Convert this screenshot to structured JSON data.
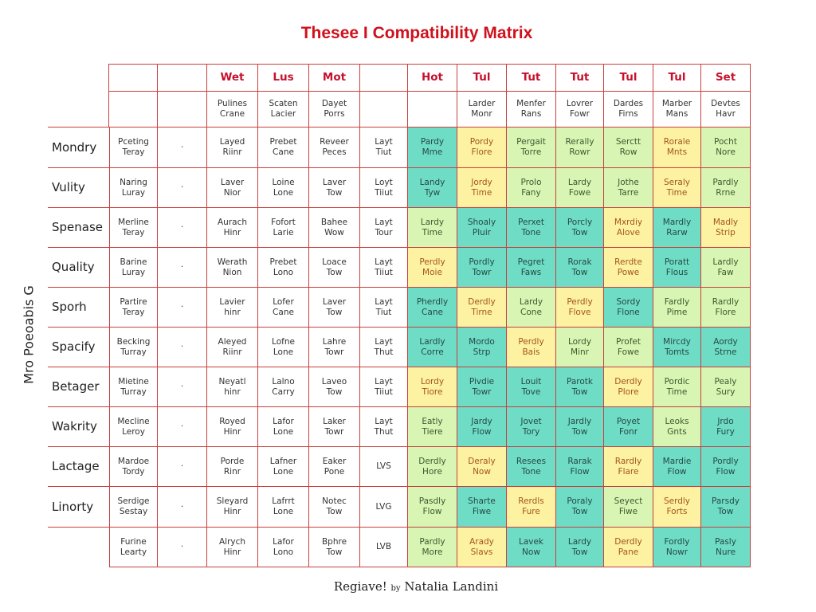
{
  "title": "Thesee I Compatibility Matrix",
  "vertical_label": "Mro Poeoabis G",
  "colors": {
    "border": "#c9403f",
    "header_text": "#c8102e",
    "T": "#6fdcc6",
    "Y": "#fcf2a2",
    "G": "#d8f5b3"
  },
  "header": [
    "",
    "",
    "Wet",
    "Lus",
    "Mot",
    "",
    "Hot",
    "Tul",
    "Tut",
    "Tut",
    "Tul",
    "Tul",
    "Set"
  ],
  "subheader": [
    "",
    "",
    "Pulines\nCrane",
    "Scaten\nLacier",
    "Dayet\nPorrs",
    "",
    "",
    "Larder\nMonr",
    "Menfer\nRans",
    "Lovrer\nFowr",
    "Dardes\nFirns",
    "Marber\nMans",
    "Devtes\nHavr"
  ],
  "rows": [
    {
      "label": "Mondry",
      "cells": [
        "Pceting\nTeray",
        "·",
        "Layed\nRiinr",
        "Prebet\nCane",
        "Reveer\nPeces",
        "Layt\nTiut"
      ],
      "ratings": [
        [
          "Pardy\nMme",
          "T"
        ],
        [
          "Pordy\nFlore",
          "Y"
        ],
        [
          "Pergait\nTorre",
          "G"
        ],
        [
          "Rerally\nRowr",
          "G"
        ],
        [
          "Serctt\nRow",
          "G"
        ],
        [
          "Rorale\nMnts",
          "Y"
        ],
        [
          "Pocht\nNore",
          "G"
        ]
      ]
    },
    {
      "label": "Vulity",
      "cells": [
        "Naring\nLuray",
        "·",
        "Laver\nNior",
        "Loine\nLone",
        "Laver\nTow",
        "Loyt\nTiiut"
      ],
      "ratings": [
        [
          "Landy\nTyw",
          "T"
        ],
        [
          "Jordy\nTime",
          "Y"
        ],
        [
          "Prolo\nFany",
          "G"
        ],
        [
          "Lardy\nFowe",
          "G"
        ],
        [
          "Jothe\nTarre",
          "G"
        ],
        [
          "Seraly\nTime",
          "Y"
        ],
        [
          "Pardly\nRrne",
          "G"
        ]
      ]
    },
    {
      "label": "Spenase",
      "cells": [
        "Merline\nTeray",
        "·",
        "Aurach\nHinr",
        "Fofort\nLarie",
        "Bahee\nWow",
        "Layt\nTour"
      ],
      "ratings": [
        [
          "Lardy\nTime",
          "G"
        ],
        [
          "Shoaly\nPluir",
          "T"
        ],
        [
          "Perxet\nTone",
          "T"
        ],
        [
          "Porcly\nTow",
          "T"
        ],
        [
          "Mxrdiy\nAlove",
          "Y"
        ],
        [
          "Mardly\nRarw",
          "T"
        ],
        [
          "Madly\nStrip",
          "Y"
        ]
      ]
    },
    {
      "label": "Quality",
      "cells": [
        "Barine\nLuray",
        "·",
        "Werath\nNion",
        "Prebet\nLono",
        "Loace\nTow",
        "Layt\nTiiut"
      ],
      "ratings": [
        [
          "Perdly\nMoie",
          "Y"
        ],
        [
          "Pordly\nTowr",
          "T"
        ],
        [
          "Pegret\nFaws",
          "T"
        ],
        [
          "Rorak\nTow",
          "T"
        ],
        [
          "Rerdte\nPowe",
          "Y"
        ],
        [
          "Poratt\nFlous",
          "T"
        ],
        [
          "Lardly\nFaw",
          "G"
        ]
      ]
    },
    {
      "label": "Sporh",
      "cells": [
        "Partire\nTeray",
        "·",
        "Lavier\nhinr",
        "Lofer\nCane",
        "Laver\nTow",
        "Layt\nTiut"
      ],
      "ratings": [
        [
          "Pherdly\nCane",
          "T"
        ],
        [
          "Derdly\nTirne",
          "Y"
        ],
        [
          "Lardy\nCone",
          "G"
        ],
        [
          "Perdly\nFlove",
          "Y"
        ],
        [
          "Sordy\nFlone",
          "T"
        ],
        [
          "Fardly\nPime",
          "G"
        ],
        [
          "Rardly\nFlore",
          "G"
        ]
      ]
    },
    {
      "label": "Spacify",
      "cells": [
        "Becking\nTurray",
        "·",
        "Aleyed\nRiinr",
        "Lofne\nLone",
        "Lahre\nTowr",
        "Layt\nThut"
      ],
      "ratings": [
        [
          "Lardly\nCorre",
          "T"
        ],
        [
          "Mordo\nStrp",
          "T"
        ],
        [
          "Perdly\nBais",
          "Y"
        ],
        [
          "Lordy\nMinr",
          "G"
        ],
        [
          "Profet\nFowe",
          "G"
        ],
        [
          "Mircdy\nTomts",
          "T"
        ],
        [
          "Aordy\nStrne",
          "T"
        ]
      ]
    },
    {
      "label": "Betager",
      "cells": [
        "Mietine\nTurray",
        "·",
        "Neyatl\nhinr",
        "Lalno\nCarry",
        "Laveo\nTow",
        "Layt\nTiiut"
      ],
      "ratings": [
        [
          "Lordy\nTiore",
          "Y"
        ],
        [
          "Pivdie\nTowr",
          "T"
        ],
        [
          "Louit\nTove",
          "T"
        ],
        [
          "Parotk\nTow",
          "T"
        ],
        [
          "Derdly\nPlore",
          "Y"
        ],
        [
          "Pordic\nTime",
          "G"
        ],
        [
          "Pealy\nSury",
          "G"
        ]
      ]
    },
    {
      "label": "Wakrity",
      "cells": [
        "Mecline\nLeroy",
        "·",
        "Royed\nHinr",
        "Lafor\nLone",
        "Laker\nTowr",
        "Layt\nThut"
      ],
      "ratings": [
        [
          "Eatly\nTiere",
          "G"
        ],
        [
          "Jardy\nFlow",
          "T"
        ],
        [
          "Jovet\nTory",
          "T"
        ],
        [
          "Jardly\nTow",
          "T"
        ],
        [
          "Poyet\nFonr",
          "T"
        ],
        [
          "Leoks\nGnts",
          "G"
        ],
        [
          "Jrdo\nFury",
          "T"
        ]
      ]
    },
    {
      "label": "Lactage",
      "cells": [
        "Mardoe\nTordy",
        "·",
        "Porde\nRinr",
        "Lafner\nLone",
        "Eaker\nPone",
        "LVS"
      ],
      "ratings": [
        [
          "Derdly\nHore",
          "G"
        ],
        [
          "Deraly\nNow",
          "Y"
        ],
        [
          "Resees\nTone",
          "T"
        ],
        [
          "Rarak\nFlow",
          "T"
        ],
        [
          "Rardly\nFlare",
          "Y"
        ],
        [
          "Mardie\nFlow",
          "T"
        ],
        [
          "Pordly\nFlow",
          "T"
        ]
      ]
    },
    {
      "label": "Linorty",
      "cells": [
        "Serdige\nSestay",
        "·",
        "Sleyard\nHinr",
        "Lafrrt\nLone",
        "Notec\nTow",
        "LVG"
      ],
      "ratings": [
        [
          "Pasdly\nFlow",
          "G"
        ],
        [
          "Sharte\nFiwe",
          "T"
        ],
        [
          "Rerdls\nFure",
          "Y"
        ],
        [
          "Poraly\nTow",
          "T"
        ],
        [
          "Seyect\nFiwe",
          "G"
        ],
        [
          "Serdly\nForts",
          "Y"
        ],
        [
          "Parsdy\nTow",
          "T"
        ]
      ]
    },
    {
      "label": "",
      "cells": [
        "Furine\nLearty",
        "·",
        "Alrych\nHinr",
        "Lafor\nLono",
        "Bphre\nTow",
        "LVB"
      ],
      "ratings": [
        [
          "Pardly\nMore",
          "G"
        ],
        [
          "Arady\nSlavs",
          "Y"
        ],
        [
          "Lavek\nNow",
          "T"
        ],
        [
          "Lardy\nTow",
          "T"
        ],
        [
          "Derdly\nPane",
          "Y"
        ],
        [
          "Fordly\nNowr",
          "T"
        ],
        [
          "Pasly\nNure",
          "T"
        ]
      ]
    }
  ],
  "footer": {
    "prefix": "Regiave!",
    "by": "by",
    "author": "Natalia Landini"
  }
}
